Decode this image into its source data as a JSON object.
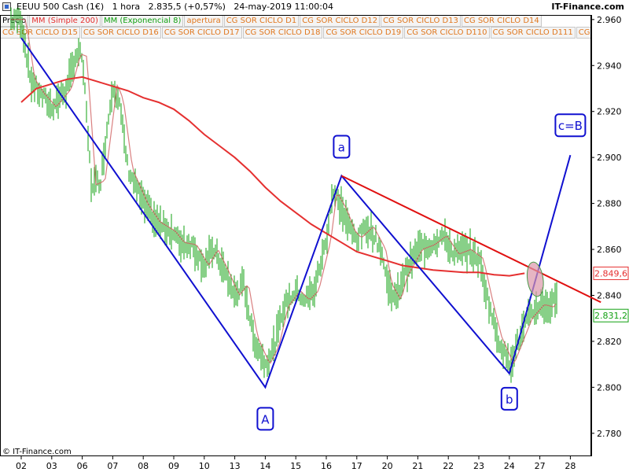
{
  "window": {
    "title": "EEUU 500 Cash (1€)   1 hora   2.835,5 (+0,57%)   24-may-2019 11:00:04",
    "brand": "IT-Finance.com"
  },
  "legend": {
    "row1": [
      {
        "label": "Precio",
        "color": "#000000"
      },
      {
        "label": "MM (Simple 200)",
        "color": "#e53030"
      },
      {
        "label": "MM (Exponencial 8)",
        "color": "#10a010"
      },
      {
        "label": "apertura",
        "color": "#e07820"
      },
      {
        "label": "CG SOR CICLO D1",
        "color": "#e07820"
      },
      {
        "label": "CG SOR CICLO D12",
        "color": "#e07820"
      },
      {
        "label": "CG SOR CICLO D13",
        "color": "#e07820"
      },
      {
        "label": "CG SOR CICLO D14",
        "color": "#e07820"
      }
    ],
    "row2": [
      {
        "label": "CG SOR CICLO D15",
        "color": "#e07820"
      },
      {
        "label": "CG SOR CICLO D16",
        "color": "#e07820"
      },
      {
        "label": "CG SOR CICLO D17",
        "color": "#e07820"
      },
      {
        "label": "CG SOR CICLO D18",
        "color": "#e07820"
      },
      {
        "label": "CG SOR CICLO D19",
        "color": "#e07820"
      },
      {
        "label": "CG SOR CICLO D110",
        "color": "#e07820"
      },
      {
        "label": "CG SOR CICLO D111",
        "color": "#e07820"
      },
      {
        "label": "CG SOR",
        "color": "#e07820"
      }
    ]
  },
  "copyright": "© IT-Finance.com",
  "chart_data": {
    "type": "line",
    "title": "EEUU 500 Cash (1€) 1 hora",
    "x_tick_labels": [
      "02",
      "03",
      "06",
      "07",
      "08",
      "09",
      "10",
      "13",
      "14",
      "15",
      "16",
      "17",
      "20",
      "21",
      "22",
      "23",
      "24",
      "27",
      "28"
    ],
    "ylim": [
      2770,
      2962
    ],
    "y_ticks": [
      2780,
      2800,
      2820,
      2840,
      2860,
      2880,
      2900,
      2920,
      2940,
      2960
    ],
    "y_tick_labels": [
      "2.780",
      "2.800",
      "2.820",
      "2.840",
      "2.860",
      "2.880",
      "2.900",
      "2.920",
      "2.940",
      "2.960"
    ],
    "grid": false,
    "series": [
      {
        "name": "Precio",
        "color": "#10a010",
        "x": [
          0.0,
          0.3,
          0.6,
          1.0,
          1.5,
          1.8,
          2.0,
          2.3,
          2.6,
          3.0,
          3.2,
          3.5,
          4.0,
          4.4,
          4.9,
          5.2,
          5.6,
          6.0,
          6.3,
          6.6,
          7.0,
          7.3,
          7.6,
          8.0,
          8.3,
          8.6,
          9.0,
          9.3,
          9.6,
          10.0,
          10.2,
          10.5,
          10.8,
          11.0,
          11.4,
          11.8,
          12.0,
          12.3,
          12.5,
          12.8,
          13.0,
          13.4,
          13.8,
          14.2,
          14.6,
          15.0,
          15.3,
          15.6,
          16.0,
          16.3,
          16.6,
          17.0,
          17.3,
          17.6
        ],
        "values": [
          2960,
          2934,
          2928,
          2922,
          2930,
          2945,
          2944,
          2888,
          2890,
          2932,
          2925,
          2895,
          2880,
          2872,
          2868,
          2863,
          2862,
          2853,
          2860,
          2852,
          2840,
          2845,
          2822,
          2810,
          2818,
          2835,
          2842,
          2838,
          2842,
          2864,
          2885,
          2878,
          2868,
          2865,
          2870,
          2860,
          2845,
          2838,
          2848,
          2855,
          2860,
          2862,
          2866,
          2858,
          2860,
          2856,
          2838,
          2822,
          2810,
          2820,
          2830,
          2836,
          2835,
          2840
        ]
      },
      {
        "name": "MM (Simple 200)",
        "color": "#e53030",
        "x": [
          0.0,
          0.5,
          1.0,
          1.5,
          2.0,
          2.5,
          3.0,
          3.5,
          4.0,
          4.5,
          5.0,
          5.5,
          6.0,
          6.5,
          7.0,
          7.5,
          8.0,
          8.5,
          9.0,
          9.5,
          10.0,
          10.5,
          11.0,
          11.5,
          12.0,
          12.5,
          13.0,
          13.5,
          14.0,
          14.5,
          15.0,
          15.5,
          16.0,
          16.5
        ],
        "values": [
          2924,
          2930,
          2932,
          2934,
          2935,
          2933,
          2931,
          2929,
          2926,
          2924,
          2921,
          2916,
          2910,
          2905,
          2900,
          2894,
          2887,
          2881,
          2876,
          2871,
          2867,
          2863,
          2859,
          2857,
          2855,
          2853,
          2852,
          2851,
          2850.5,
          2850,
          2850,
          2849,
          2848.5,
          2849.6
        ]
      }
    ],
    "price_labels": [
      {
        "value": 2849.6,
        "label": "2.849,6",
        "color": "#e53030"
      },
      {
        "value": 2831.2,
        "label": "2.831,2",
        "color": "#10a010"
      }
    ],
    "annotations": [
      {
        "label": "A",
        "x": 8,
        "y": 2800
      },
      {
        "label": "a",
        "x": 10.5,
        "y": 2892
      },
      {
        "label": "b",
        "x": 16.0,
        "y": 2806
      },
      {
        "label": "c=B",
        "x": 18.0,
        "y": 2901
      }
    ],
    "elliott_lines": [
      {
        "x": [
          0.0,
          8.0,
          10.5,
          16.0,
          18.0
        ],
        "y": [
          2952,
          2800,
          2892,
          2806,
          2901
        ],
        "color": "#1010d0"
      },
      {
        "x": [
          10.5,
          19.0
        ],
        "y": [
          2892,
          2837
        ],
        "color": "#e01010"
      }
    ]
  }
}
